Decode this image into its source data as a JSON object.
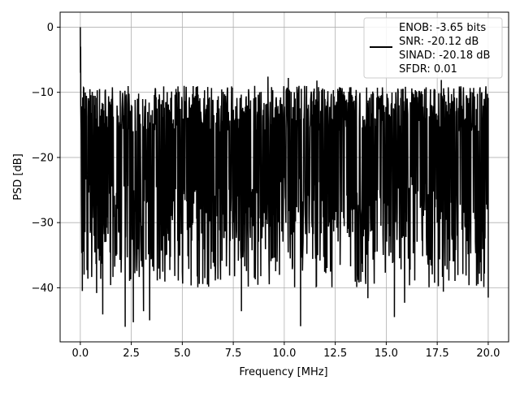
{
  "chart_data": {
    "type": "line",
    "title": "",
    "xlabel": "Frequency [MHz]",
    "ylabel": "PSD [dB]",
    "xlim": [
      -0.99,
      21.0
    ],
    "ylim": [
      -48.3,
      2.3
    ],
    "xticks": [
      0.0,
      2.5,
      5.0,
      7.5,
      10.0,
      12.5,
      15.0,
      17.5,
      20.0
    ],
    "xtick_labels": [
      "0.0",
      "2.5",
      "5.0",
      "7.5",
      "10.0",
      "12.5",
      "15.0",
      "17.5",
      "20.0"
    ],
    "yticks": [
      0,
      -10,
      -20,
      -30,
      -40
    ],
    "ytick_labels": [
      "0",
      "−10",
      "−20",
      "−30",
      "−40"
    ],
    "grid": true,
    "legend_position": "top-right",
    "legend_lines": [
      "ENOB: -3.65 bits",
      "SNR: -20.12 dB",
      "SINAD: -20.18 dB",
      "SFDR: 0.01"
    ],
    "series": [
      {
        "color": "#000000",
        "description": "noise-like PSD spanning 0 to 20 MHz; peak near 0 dB at 0 MHz, envelope mostly between -13 and -30 dB",
        "peak": {
          "x": 0.0,
          "y": 0.0
        },
        "x_range": [
          0.0,
          20.0
        ],
        "upper_envelope_typical": -13,
        "lower_envelope_typical": -30,
        "notable_minima": [
          {
            "x": 0.1,
            "y": -40.5
          },
          {
            "x": 0.8,
            "y": -40.8
          },
          {
            "x": 1.1,
            "y": -44.1
          },
          {
            "x": 2.2,
            "y": -46.0
          },
          {
            "x": 2.6,
            "y": -45.3
          },
          {
            "x": 3.1,
            "y": -43.6
          },
          {
            "x": 3.4,
            "y": -45.0
          },
          {
            "x": 7.9,
            "y": -43.6
          },
          {
            "x": 10.8,
            "y": -45.9
          },
          {
            "x": 14.1,
            "y": -41.6
          },
          {
            "x": 15.4,
            "y": -44.5
          },
          {
            "x": 15.9,
            "y": -42.3
          },
          {
            "x": 17.8,
            "y": -40.6
          },
          {
            "x": 20.0,
            "y": -41.5
          }
        ],
        "notable_maxima": [
          {
            "x": 0.0,
            "y": 0.0
          },
          {
            "x": 9.2,
            "y": -7.6
          },
          {
            "x": 10.2,
            "y": -7.8
          },
          {
            "x": 11.6,
            "y": -8.2
          },
          {
            "x": 17.7,
            "y": -8.1
          }
        ]
      }
    ]
  }
}
